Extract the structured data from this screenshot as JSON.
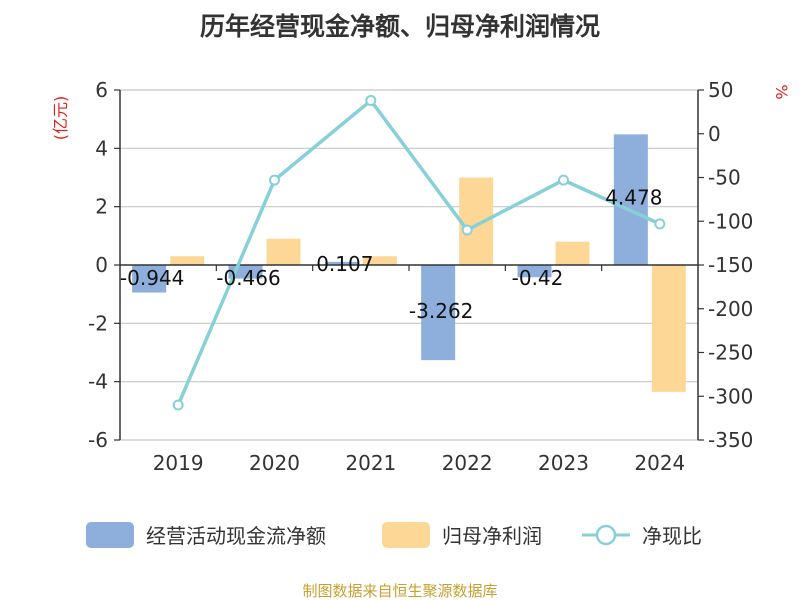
{
  "chart_data": {
    "type": "bar",
    "title": "历年经营现金净额、归母净利润情况",
    "categories": [
      "2019",
      "2020",
      "2021",
      "2022",
      "2023",
      "2024"
    ],
    "left_unit": "(亿元)",
    "right_unit": "%",
    "ylim_left": [
      -6,
      6
    ],
    "yticks_left": [
      -6,
      -4,
      -2,
      0,
      2,
      4,
      6
    ],
    "ylim_right": [
      -350,
      50
    ],
    "yticks_right": [
      -350,
      -300,
      -250,
      -200,
      -150,
      -100,
      -50,
      0,
      50
    ],
    "series": [
      {
        "name": "经营活动现金流净额",
        "kind": "bar",
        "axis": "left",
        "color": "#8eaedc",
        "values": [
          -0.944,
          -0.466,
          0.107,
          -3.262,
          -0.42,
          4.478
        ],
        "labels": [
          "-0.944",
          "-0.466",
          "0.107",
          "-3.262",
          "-0.42",
          "4.478"
        ]
      },
      {
        "name": "归母净利润",
        "kind": "bar",
        "axis": "left",
        "color": "#fdd796",
        "values": [
          0.3,
          0.9,
          0.3,
          3.0,
          0.8,
          -4.35
        ]
      },
      {
        "name": "净现比",
        "kind": "line",
        "axis": "right",
        "color": "#88d0d8",
        "values": [
          -310,
          -53,
          38,
          -110,
          -53,
          -103
        ]
      }
    ],
    "legend_position": "bottom",
    "grid": true
  },
  "source_text": "制图数据来自恒生聚源数据库"
}
